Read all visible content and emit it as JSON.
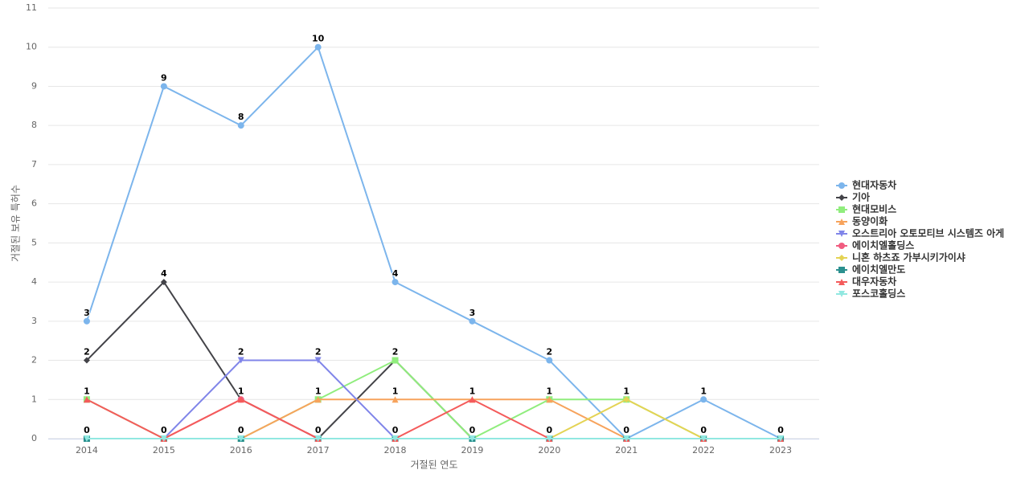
{
  "chart_data": {
    "type": "line",
    "x_label": "거절된 연도",
    "y_label": "거절된 보유 특허수",
    "categories": [
      "2014",
      "2015",
      "2016",
      "2017",
      "2018",
      "2019",
      "2020",
      "2021",
      "2022",
      "2023"
    ],
    "ylim": [
      0,
      11
    ],
    "yticks": [
      0,
      1,
      2,
      3,
      4,
      5,
      6,
      7,
      8,
      9,
      10,
      11
    ],
    "grid": true,
    "legend": "right",
    "data_labels": true,
    "series": [
      {
        "name": "현대자동차",
        "color": "#7cb5ec",
        "marker": "circle",
        "values": [
          3,
          9,
          8,
          10,
          4,
          3,
          2,
          0,
          1,
          0
        ]
      },
      {
        "name": "기아",
        "color": "#434348",
        "marker": "diamond",
        "values": [
          2,
          4,
          1,
          0,
          2,
          0,
          0,
          0,
          0,
          0
        ]
      },
      {
        "name": "현대모비스",
        "color": "#90ed7d",
        "marker": "square",
        "values": [
          1,
          0,
          0,
          1,
          2,
          0,
          1,
          1,
          0,
          0
        ]
      },
      {
        "name": "동양이화",
        "color": "#f7a35c",
        "marker": "triangle",
        "values": [
          0,
          0,
          0,
          1,
          1,
          1,
          1,
          0,
          0,
          0
        ]
      },
      {
        "name": "오스트리아 오토모티브 시스템즈 아게",
        "color": "#8085e9",
        "marker": "triangle-down",
        "values": [
          0,
          0,
          2,
          2,
          0,
          0,
          0,
          0,
          0,
          0
        ]
      },
      {
        "name": "에이치엘홀딩스",
        "color": "#f15c80",
        "marker": "circle",
        "values": [
          0,
          0,
          1,
          0,
          0,
          0,
          0,
          0,
          0,
          0
        ]
      },
      {
        "name": "니혼 하츠죠 가부시키가이샤",
        "color": "#e4d354",
        "marker": "diamond",
        "values": [
          0,
          0,
          0,
          0,
          0,
          0,
          0,
          1,
          0,
          0
        ]
      },
      {
        "name": "에이치엘만도",
        "color": "#2b908f",
        "marker": "square",
        "values": [
          0,
          0,
          0,
          0,
          0,
          0,
          0,
          0,
          0,
          0
        ]
      },
      {
        "name": "대우자동차",
        "color": "#f45b5b",
        "marker": "triangle",
        "values": [
          1,
          0,
          1,
          0,
          0,
          1,
          0,
          0,
          0,
          0
        ]
      },
      {
        "name": "포스코홀딩스",
        "color": "#91e8e1",
        "marker": "triangle-down",
        "values": [
          0,
          0,
          0,
          0,
          0,
          0,
          0,
          0,
          0,
          0
        ]
      }
    ]
  }
}
